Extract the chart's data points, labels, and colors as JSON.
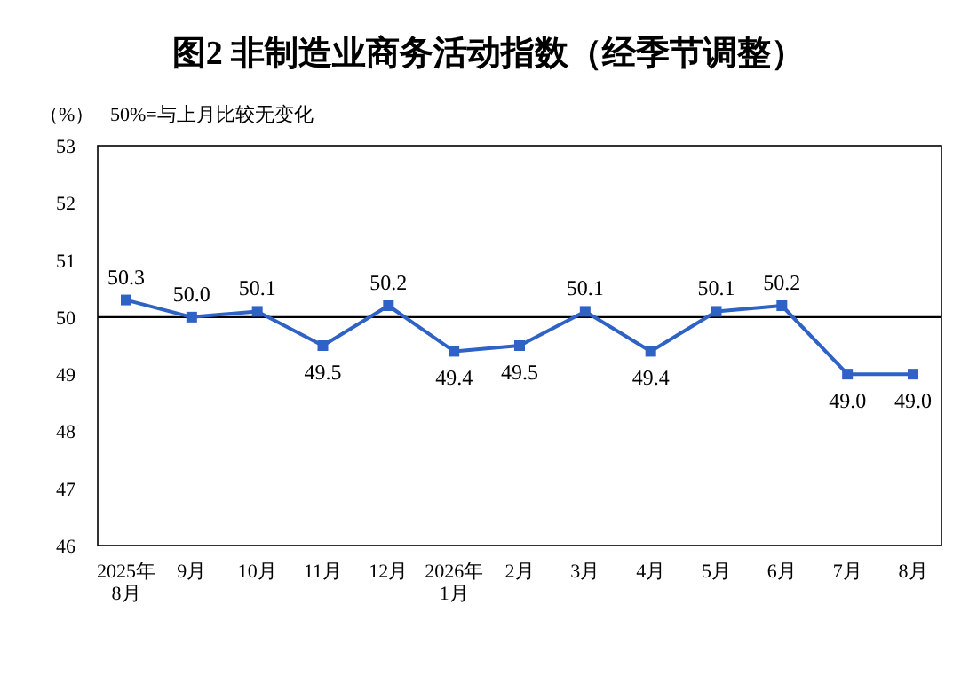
{
  "chart_data": {
    "type": "line",
    "title": "图2 非制造业商务活动指数（经季节调整）",
    "ylabel": "（%）",
    "annotations": [
      "50%=与上月比较无变化"
    ],
    "categories": [
      "2025年\n8月",
      "9月",
      "10月",
      "11月",
      "12月",
      "2026年\n1月",
      "2月",
      "3月",
      "4月",
      "5月",
      "6月",
      "7月",
      "8月"
    ],
    "series": [
      {
        "color": "#2e62c4",
        "values": [
          50.3,
          50.0,
          50.1,
          49.5,
          50.2,
          49.4,
          49.5,
          50.1,
          49.4,
          50.1,
          50.2,
          49.0,
          49.0
        ],
        "value_labels": [
          "50.3",
          "50.0",
          "50.1",
          "49.5",
          "50.2",
          "49.4",
          "49.5",
          "50.1",
          "49.4",
          "50.1",
          "50.2",
          "49.0",
          "49.0"
        ]
      }
    ],
    "ylim": [
      46,
      53
    ],
    "yticks": [
      46,
      47,
      48,
      49,
      50,
      51,
      52,
      53
    ],
    "ref_lines": [
      {
        "axis": "y",
        "value": 50,
        "color": "#000000"
      }
    ],
    "marker": "square",
    "line_style": "solid",
    "grid": false
  }
}
